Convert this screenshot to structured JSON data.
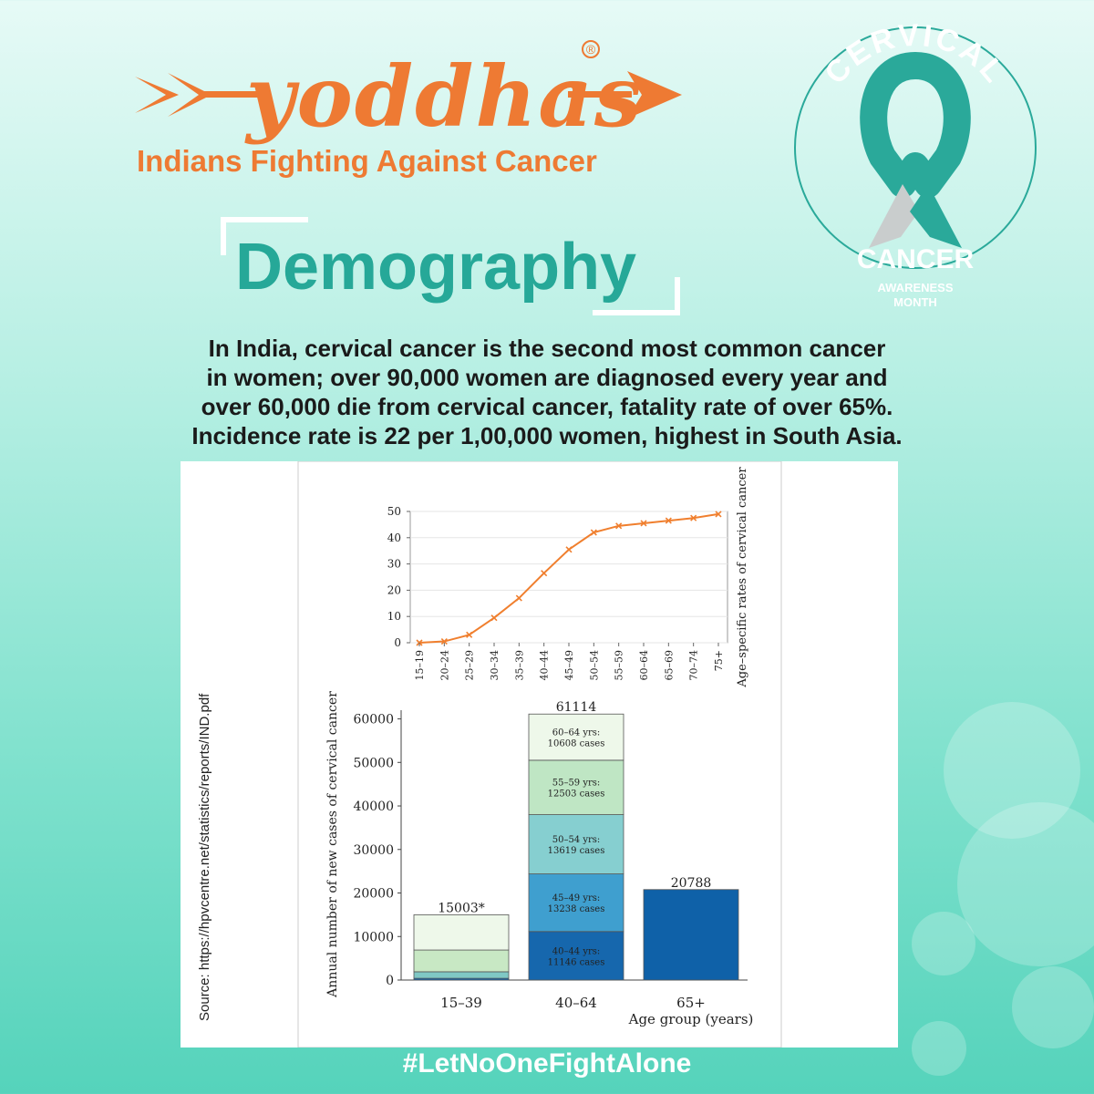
{
  "brand": {
    "name": "yoddhas",
    "tagline": "Indians Fighting Against Cancer",
    "registered": "®",
    "color": "#ee7a33"
  },
  "badge": {
    "top": "CERVICAL",
    "bottom": "CANCER",
    "sub1": "AWARENESS",
    "sub2": "MONTH",
    "ribbon_color": "#2aa99a"
  },
  "heading": "Demography",
  "intro_lines": [
    "In India, cervical cancer is the second most common cancer",
    "in women; over 90,000 women are diagnosed every year and",
    "over 60,000 die from cervical cancer, fatality rate of over 65%.",
    "Incidence rate is 22 per 1,00,000 women, highest in South Asia."
  ],
  "source": "Source: https://hpvcentre.net/statistics/reports/IND.pdf",
  "hashtag": "#LetNoOneFightAlone",
  "chart_data": [
    {
      "type": "line",
      "categories": [
        "15–19",
        "20–24",
        "25–29",
        "30–34",
        "35–39",
        "40–44",
        "45–49",
        "50–54",
        "55–59",
        "60–64",
        "65–69",
        "70–74",
        "75+"
      ],
      "values": [
        0,
        0.5,
        3,
        9.5,
        17,
        26.5,
        35.5,
        42,
        44.5,
        45.5,
        46.5,
        47.5,
        49
      ],
      "ylabel": "Age–specific rates of cervical cancer",
      "ylim": [
        0,
        50
      ],
      "yticks": [
        0,
        10,
        20,
        30,
        40,
        50
      ],
      "color": "#f07f2e",
      "grid": true
    },
    {
      "type": "bar",
      "stacked": true,
      "categories": [
        "15–39",
        "40–64",
        "65+"
      ],
      "totals": [
        "15003*",
        "61114",
        "20788"
      ],
      "ylabel": "Annual number of new cases of cervical cancer",
      "xlabel": "Age group (years)",
      "ylim": [
        0,
        62000
      ],
      "yticks": [
        0,
        10000,
        20000,
        30000,
        40000,
        50000,
        60000
      ],
      "stacks": [
        {
          "category": "15–39",
          "segments": [
            {
              "value": 400,
              "color": "#1667ad"
            },
            {
              "value": 1500,
              "color": "#7fc8c5"
            },
            {
              "value": 5000,
              "color": "#c8e8c4"
            },
            {
              "value": 8103,
              "color": "#eef8ea"
            }
          ]
        },
        {
          "category": "40–64",
          "segments": [
            {
              "value": 11146,
              "color": "#1667ad",
              "label1": "40–44 yrs:",
              "label2": "11146 cases"
            },
            {
              "value": 13238,
              "color": "#3f9fcf",
              "label1": "45–49 yrs:",
              "label2": "13238 cases"
            },
            {
              "value": 13619,
              "color": "#86cfd0",
              "label1": "50–54 yrs:",
              "label2": "13619 cases"
            },
            {
              "value": 12503,
              "color": "#bfe6c4",
              "label1": "55–59 yrs:",
              "label2": "12503 cases"
            },
            {
              "value": 10608,
              "color": "#eef8ea",
              "label1": "60–64 yrs:",
              "label2": "10608 cases"
            }
          ]
        },
        {
          "category": "65+",
          "segments": [
            {
              "value": 20788,
              "color": "#0f61a8"
            }
          ]
        }
      ]
    }
  ]
}
